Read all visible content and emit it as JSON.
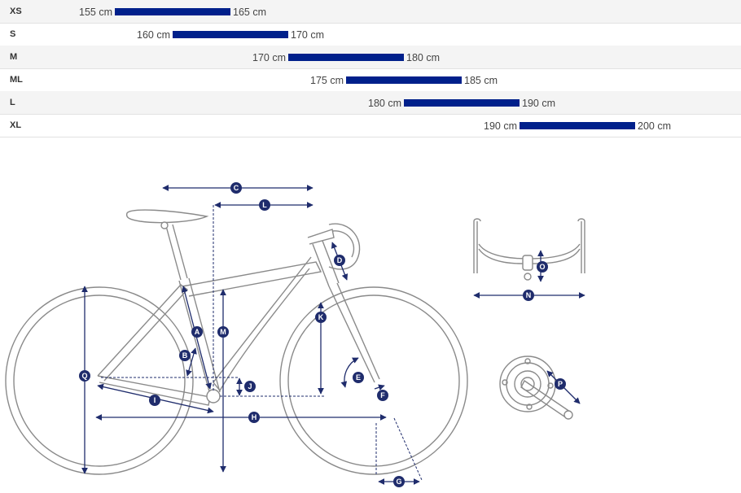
{
  "sizes": [
    {
      "name": "XS",
      "min": "155 cm",
      "max": "165 cm",
      "min_cm": 155,
      "max_cm": 165
    },
    {
      "name": "S",
      "min": "160 cm",
      "max": "170 cm",
      "min_cm": 160,
      "max_cm": 170
    },
    {
      "name": "M",
      "min": "170 cm",
      "max": "180 cm",
      "min_cm": 170,
      "max_cm": 180
    },
    {
      "name": "ML",
      "min": "175 cm",
      "max": "185 cm",
      "min_cm": 175,
      "max_cm": 185
    },
    {
      "name": "L",
      "min": "180 cm",
      "max": "190 cm",
      "min_cm": 180,
      "max_cm": 190
    },
    {
      "name": "XL",
      "min": "190 cm",
      "max": "200 cm",
      "min_cm": 190,
      "max_cm": 200
    }
  ],
  "colors": {
    "bar": "#00208b",
    "marker": "#1f2c6c",
    "frame_line": "#8a8a8a"
  },
  "markers": {
    "A": "A",
    "B": "B",
    "C": "C",
    "D": "D",
    "E": "E",
    "F": "F",
    "G": "G",
    "H": "H",
    "I": "I",
    "J": "J",
    "K": "K",
    "L": "L",
    "M": "M",
    "N": "N",
    "O": "O",
    "P": "P",
    "Q": "Q"
  }
}
